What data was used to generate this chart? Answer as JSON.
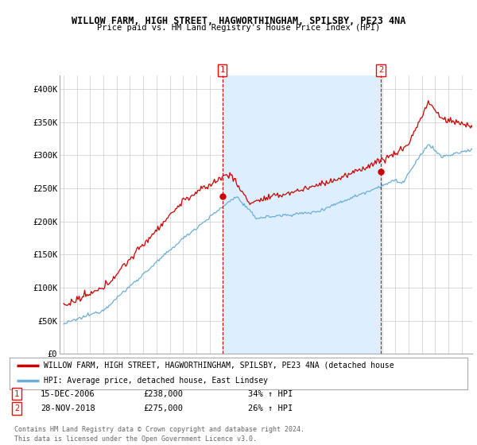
{
  "title": "WILLOW FARM, HIGH STREET, HAGWORTHINGHAM, SPILSBY, PE23 4NA",
  "subtitle": "Price paid vs. HM Land Registry's House Price Index (HPI)",
  "ylim": [
    0,
    420000
  ],
  "yticks": [
    0,
    50000,
    100000,
    150000,
    200000,
    250000,
    300000,
    350000,
    400000
  ],
  "ytick_labels": [
    "£0",
    "£50K",
    "£100K",
    "£150K",
    "£200K",
    "£250K",
    "£300K",
    "£350K",
    "£400K"
  ],
  "hpi_color": "#6baed6",
  "price_color": "#cc0000",
  "shade_color": "#ddeeff",
  "marker1_year": 2006.96,
  "marker1_price": 238000,
  "marker2_year": 2018.91,
  "marker2_price": 275000,
  "legend_line1": "WILLOW FARM, HIGH STREET, HAGWORTHINGHAM, SPILSBY, PE23 4NA (detached house",
  "legend_line2": "HPI: Average price, detached house, East Lindsey",
  "marker1_date": "15-DEC-2006",
  "marker1_pct": "34%",
  "marker2_date": "28-NOV-2018",
  "marker2_pct": "26%",
  "footer1": "Contains HM Land Registry data © Crown copyright and database right 2024.",
  "footer2": "This data is licensed under the Open Government Licence v3.0.",
  "background_color": "#ffffff",
  "grid_color": "#cccccc"
}
